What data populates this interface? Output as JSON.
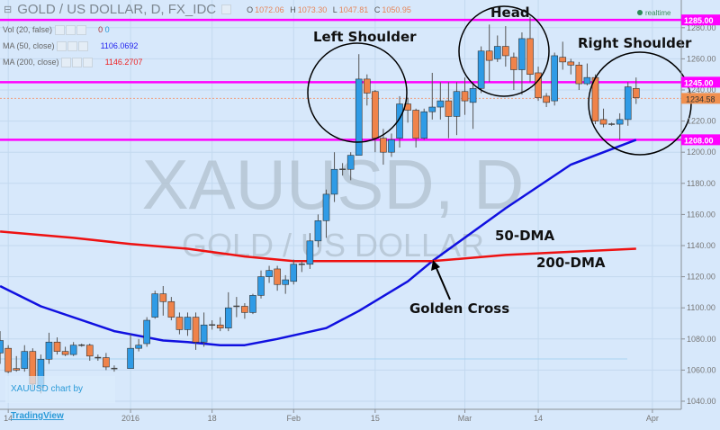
{
  "header": {
    "title": "GOLD / US DOLLAR, D, FX_IDC",
    "o_label": "O",
    "o": "1072.06",
    "h_label": "H",
    "h": "1073.30",
    "l_label": "L",
    "l": "1047.81",
    "c_label": "C",
    "c": "1050.95",
    "realtime": "realtime"
  },
  "legend": [
    {
      "label": "Vol (20, false)",
      "value": "0",
      "value2": "0"
    },
    {
      "label": "MA (50, close)",
      "value": "1106.0692"
    },
    {
      "label": "MA (200, close)",
      "value": "1146.2707"
    }
  ],
  "watermark": {
    "symbol": "XAUUSD, D",
    "name": "GOLD / US DOLLAR"
  },
  "credit": {
    "text": "XAUUSD chart by ",
    "link": "TradingView"
  },
  "colors": {
    "up": "#2f9be6",
    "down": "#f0834a",
    "ma50": "#1010e0",
    "ma200": "#ee1111",
    "levels": "#ff00ff",
    "background": "#d7e8fb"
  },
  "chart_data": {
    "type": "candlestick",
    "ylim": [
      1030,
      1290
    ],
    "y_ticks": [
      "1040.00",
      "1060.00",
      "1080.00",
      "1100.00",
      "1120.00",
      "1140.00",
      "1160.00",
      "1180.00",
      "1200.00",
      "1220.00",
      "1240.00",
      "1260.00",
      "1280.00"
    ],
    "x_ticks": [
      {
        "date": "2015-12-14",
        "label": "14"
      },
      {
        "date": "2016-01-04",
        "label": "2016"
      },
      {
        "date": "2016-01-18",
        "label": "18"
      },
      {
        "date": "2016-02-01",
        "label": "Feb"
      },
      {
        "date": "2016-02-15",
        "label": "15"
      },
      {
        "date": "2016-03-01",
        "label": "Mar"
      },
      {
        "date": "2016-03-14",
        "label": "14"
      },
      {
        "date": "2016-04-01",
        "label": "Apr"
      }
    ],
    "last_price": "1234.58",
    "levels": [
      {
        "value": 1285,
        "label": "1285.00"
      },
      {
        "value": 1245,
        "label": "1245.00"
      },
      {
        "value": 1208,
        "label": "1208.00"
      }
    ],
    "candles": [
      [
        "2015-12-11",
        1071,
        1085,
        1064,
        1079
      ],
      [
        "2015-12-14",
        1074,
        1076,
        1058,
        1059
      ],
      [
        "2015-12-15",
        1061,
        1069,
        1059,
        1060
      ],
      [
        "2015-12-16",
        1061,
        1076,
        1059,
        1072
      ],
      [
        "2015-12-17",
        1072,
        1074,
        1047,
        1051
      ],
      [
        "2015-12-18",
        1049,
        1070,
        1045,
        1067
      ],
      [
        "2015-12-21",
        1067,
        1084,
        1064,
        1078
      ],
      [
        "2015-12-22",
        1078,
        1081,
        1070,
        1072
      ],
      [
        "2015-12-23",
        1072,
        1075,
        1069,
        1070
      ],
      [
        "2015-12-24",
        1070,
        1078,
        1069,
        1076
      ],
      [
        "2015-12-25",
        1076,
        1077,
        1075,
        1076
      ],
      [
        "2015-12-28",
        1076,
        1077,
        1066,
        1069
      ],
      [
        "2015-12-29",
        1068,
        1070,
        1066,
        1068
      ],
      [
        "2015-12-30",
        1068,
        1071,
        1060,
        1062
      ],
      [
        "2015-12-31",
        1061,
        1063,
        1059,
        1061
      ],
      [
        "2016-01-04",
        1061,
        1083,
        1061,
        1074
      ],
      [
        "2016-01-05",
        1074,
        1080,
        1072,
        1076
      ],
      [
        "2016-01-06",
        1077,
        1094,
        1075,
        1092
      ],
      [
        "2016-01-07",
        1094,
        1111,
        1093,
        1109
      ],
      [
        "2016-01-08",
        1109,
        1114,
        1095,
        1104
      ],
      [
        "2016-01-11",
        1104,
        1107,
        1092,
        1094
      ],
      [
        "2016-01-12",
        1094,
        1097,
        1083,
        1086
      ],
      [
        "2016-01-13",
        1086,
        1097,
        1082,
        1094
      ],
      [
        "2016-01-14",
        1094,
        1097,
        1073,
        1078
      ],
      [
        "2016-01-15",
        1078,
        1097,
        1075,
        1089
      ],
      [
        "2016-01-18",
        1089,
        1092,
        1086,
        1089
      ],
      [
        "2016-01-19",
        1089,
        1094,
        1085,
        1087
      ],
      [
        "2016-01-20",
        1087,
        1110,
        1085,
        1100
      ],
      [
        "2016-01-21",
        1101,
        1107,
        1094,
        1101
      ],
      [
        "2016-01-22",
        1101,
        1103,
        1093,
        1097
      ],
      [
        "2016-01-25",
        1097,
        1109,
        1096,
        1108
      ],
      [
        "2016-01-26",
        1108,
        1124,
        1106,
        1120
      ],
      [
        "2016-01-27",
        1120,
        1127,
        1116,
        1124
      ],
      [
        "2016-01-28",
        1125,
        1127,
        1111,
        1115
      ],
      [
        "2016-01-29",
        1115,
        1121,
        1109,
        1118
      ],
      [
        "2016-02-01",
        1117,
        1131,
        1115,
        1128
      ],
      [
        "2016-02-02",
        1128,
        1130,
        1123,
        1128
      ],
      [
        "2016-02-03",
        1128,
        1148,
        1125,
        1143
      ],
      [
        "2016-02-04",
        1143,
        1160,
        1139,
        1156
      ],
      [
        "2016-02-05",
        1156,
        1176,
        1145,
        1173
      ],
      [
        "2016-02-08",
        1173,
        1200,
        1168,
        1189
      ],
      [
        "2016-02-09",
        1189,
        1193,
        1185,
        1189
      ],
      [
        "2016-02-10",
        1189,
        1200,
        1182,
        1198
      ],
      [
        "2016-02-11",
        1198,
        1263,
        1198,
        1247
      ],
      [
        "2016-02-12",
        1247,
        1250,
        1230,
        1238
      ],
      [
        "2016-02-15",
        1239,
        1240,
        1200,
        1209
      ],
      [
        "2016-02-16",
        1209,
        1215,
        1192,
        1200
      ],
      [
        "2016-02-17",
        1200,
        1212,
        1197,
        1208
      ],
      [
        "2016-02-18",
        1209,
        1236,
        1203,
        1231
      ],
      [
        "2016-02-19",
        1231,
        1235,
        1219,
        1227
      ],
      [
        "2016-02-22",
        1227,
        1228,
        1203,
        1209
      ],
      [
        "2016-02-23",
        1209,
        1228,
        1208,
        1226
      ],
      [
        "2016-02-24",
        1226,
        1251,
        1221,
        1229
      ],
      [
        "2016-02-25",
        1229,
        1245,
        1221,
        1233
      ],
      [
        "2016-02-26",
        1233,
        1245,
        1209,
        1223
      ],
      [
        "2016-02-29",
        1223,
        1245,
        1211,
        1239
      ],
      [
        "2016-03-01",
        1239,
        1248,
        1224,
        1233
      ],
      [
        "2016-03-02",
        1232,
        1245,
        1215,
        1241
      ],
      [
        "2016-03-03",
        1241,
        1268,
        1238,
        1265
      ],
      [
        "2016-03-04",
        1265,
        1282,
        1245,
        1259
      ],
      [
        "2016-03-07",
        1260,
        1275,
        1258,
        1268
      ],
      [
        "2016-03-08",
        1268,
        1281,
        1255,
        1262
      ],
      [
        "2016-03-09",
        1261,
        1264,
        1240,
        1253
      ],
      [
        "2016-03-10",
        1253,
        1277,
        1237,
        1273
      ],
      [
        "2016-03-11",
        1273,
        1287,
        1245,
        1250
      ],
      [
        "2016-03-14",
        1251,
        1255,
        1233,
        1235
      ],
      [
        "2016-03-15",
        1236,
        1238,
        1229,
        1232
      ],
      [
        "2016-03-16",
        1233,
        1264,
        1230,
        1262
      ],
      [
        "2016-03-17",
        1261,
        1271,
        1253,
        1258
      ],
      [
        "2016-03-18",
        1258,
        1260,
        1250,
        1256
      ],
      [
        "2016-03-21",
        1256,
        1258,
        1240,
        1244
      ],
      [
        "2016-03-22",
        1244,
        1257,
        1243,
        1248
      ],
      [
        "2016-03-23",
        1248,
        1250,
        1218,
        1220
      ],
      [
        "2016-03-24",
        1221,
        1228,
        1216,
        1218
      ],
      [
        "2016-03-25",
        1218,
        1219,
        1217,
        1218
      ],
      [
        "2016-03-28",
        1218,
        1225,
        1208,
        1221
      ],
      [
        "2016-03-29",
        1221,
        1245,
        1217,
        1242
      ],
      [
        "2016-03-30",
        1241,
        1248,
        1231,
        1235
      ]
    ],
    "series": [
      {
        "name": "50-DMA",
        "points": [
          [
            "2015-12-11",
            1114
          ],
          [
            "2015-12-18",
            1101
          ],
          [
            "2015-12-31",
            1085
          ],
          [
            "2016-01-08",
            1079
          ],
          [
            "2016-01-13",
            1078
          ],
          [
            "2016-01-19",
            1076
          ],
          [
            "2016-01-22",
            1076
          ],
          [
            "2016-01-28",
            1080
          ],
          [
            "2016-02-05",
            1087
          ],
          [
            "2016-02-11",
            1098
          ],
          [
            "2016-02-19",
            1117
          ],
          [
            "2016-02-24",
            1130
          ],
          [
            "2016-03-08",
            1164
          ],
          [
            "2016-03-18",
            1192
          ],
          [
            "2016-03-30",
            1208
          ]
        ]
      },
      {
        "name": "200-DMA",
        "points": [
          [
            "2015-12-11",
            1149
          ],
          [
            "2015-12-24",
            1145
          ],
          [
            "2016-01-04",
            1141
          ],
          [
            "2016-01-13",
            1138
          ],
          [
            "2016-01-22",
            1133
          ],
          [
            "2016-02-01",
            1130
          ],
          [
            "2016-02-24",
            1130
          ],
          [
            "2016-03-08",
            1134
          ],
          [
            "2016-03-18",
            1136
          ],
          [
            "2016-03-30",
            1138
          ]
        ]
      }
    ],
    "annotations": {
      "left_shoulder": "Left Shoulder",
      "head": "Head",
      "right_shoulder": "Right Shoulder",
      "ma50_label": "50-DMA",
      "ma200_label": "200-DMA",
      "golden_cross": "Golden Cross"
    }
  }
}
